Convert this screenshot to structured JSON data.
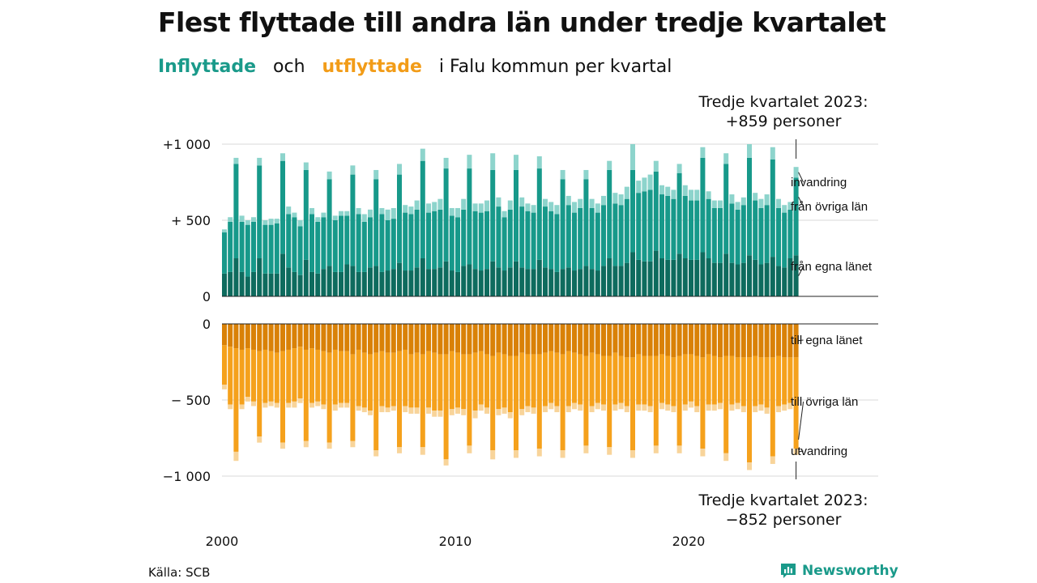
{
  "title": "Flest flyttade till andra län under tredje kvartalet",
  "subtitle": {
    "part1": "Inflyttade",
    "part2": "och",
    "part3": "utflyttade",
    "part4": "i Falu kommun per kvartal"
  },
  "annotations": {
    "top_line1": "Tredje kvartalet 2023:",
    "top_line2": "+859 personer",
    "bottom_line1": "Tredje kvartalet 2023:",
    "bottom_line2": "−852 personer"
  },
  "source": "Källa: SCB",
  "brand": {
    "name": "Newsworthy",
    "icon": "newsworthy-logo-icon"
  },
  "colors": {
    "in_own": "#0e6b5e",
    "in_other": "#17998a",
    "in_imm": "#8dd4cc",
    "out_own": "#d98107",
    "out_other": "#f5a11c",
    "out_emi": "#f8d49a",
    "in_accent": "#1a9a8a",
    "out_accent": "#f29c18",
    "grid": "#d9d9d9"
  },
  "chart_data": [
    {
      "type": "bar",
      "stacked": true,
      "panel": "inflyttade",
      "x_start": "2000Q1",
      "x_ticks": [
        "2000",
        "2010",
        "2020"
      ],
      "y_ticks": [
        "0",
        "+ 500",
        "+1 000"
      ],
      "y_tick_values": [
        0,
        500,
        1000
      ],
      "ylim": [
        0,
        1050
      ],
      "series": [
        {
          "name": "från egna länet",
          "values": [
            150,
            160,
            250,
            160,
            130,
            160,
            250,
            150,
            150,
            150,
            280,
            190,
            160,
            140,
            240,
            160,
            150,
            180,
            200,
            160,
            160,
            210,
            200,
            160,
            160,
            190,
            200,
            160,
            170,
            180,
            220,
            170,
            170,
            190,
            250,
            180,
            180,
            190,
            230,
            170,
            160,
            200,
            210,
            180,
            170,
            180,
            230,
            190,
            170,
            190,
            230,
            190,
            180,
            180,
            240,
            190,
            180,
            160,
            180,
            190,
            170,
            180,
            200,
            180,
            170,
            200,
            250,
            200,
            200,
            220,
            290,
            240,
            230,
            230,
            300,
            250,
            240,
            240,
            280,
            250,
            240,
            240,
            290,
            250,
            220,
            220,
            280,
            220,
            210,
            220,
            270,
            240,
            210,
            220,
            260,
            200,
            190,
            250,
            270
          ]
        },
        {
          "name": "från övriga län",
          "values": [
            270,
            330,
            620,
            330,
            340,
            330,
            610,
            320,
            320,
            330,
            610,
            350,
            360,
            320,
            590,
            380,
            340,
            340,
            570,
            340,
            370,
            320,
            600,
            380,
            330,
            330,
            570,
            380,
            330,
            330,
            580,
            380,
            370,
            380,
            640,
            370,
            380,
            380,
            610,
            360,
            360,
            370,
            630,
            380,
            380,
            380,
            600,
            400,
            350,
            380,
            600,
            400,
            380,
            370,
            600,
            400,
            380,
            380,
            590,
            410,
            380,
            400,
            570,
            400,
            380,
            400,
            580,
            410,
            400,
            420,
            540,
            440,
            460,
            470,
            520,
            420,
            420,
            400,
            530,
            410,
            390,
            390,
            620,
            390,
            360,
            360,
            590,
            390,
            360,
            380,
            640,
            390,
            370,
            380,
            640,
            380,
            360,
            320,
            510
          ]
        },
        {
          "name": "invandring",
          "values": [
            20,
            30,
            40,
            40,
            30,
            30,
            50,
            30,
            40,
            30,
            50,
            50,
            30,
            40,
            50,
            40,
            30,
            30,
            50,
            30,
            30,
            30,
            60,
            40,
            50,
            50,
            60,
            40,
            70,
            70,
            70,
            50,
            50,
            60,
            80,
            60,
            60,
            70,
            70,
            50,
            60,
            70,
            90,
            50,
            60,
            70,
            110,
            60,
            40,
            60,
            100,
            60,
            50,
            50,
            80,
            50,
            60,
            60,
            60,
            60,
            70,
            60,
            60,
            60,
            60,
            60,
            60,
            70,
            70,
            80,
            170,
            80,
            90,
            100,
            70,
            60,
            60,
            60,
            60,
            70,
            70,
            70,
            70,
            50,
            50,
            50,
            70,
            60,
            50,
            50,
            90,
            50,
            60,
            70,
            80,
            60,
            50,
            50,
            70
          ]
        }
      ]
    },
    {
      "type": "bar",
      "stacked": true,
      "panel": "utflyttade",
      "x_start": "2000Q1",
      "x_ticks": [
        "2000",
        "2010",
        "2020"
      ],
      "y_ticks": [
        "0",
        "− 500",
        "−1 000"
      ],
      "y_tick_values": [
        0,
        -500,
        -1000
      ],
      "ylim": [
        -1050,
        0
      ],
      "series": [
        {
          "name": "till egna länet",
          "values": [
            -140,
            -150,
            -160,
            -170,
            -160,
            -170,
            -180,
            -170,
            -180,
            -190,
            -180,
            -170,
            -160,
            -150,
            -170,
            -160,
            -170,
            -180,
            -190,
            -170,
            -180,
            -180,
            -200,
            -170,
            -190,
            -200,
            -190,
            -180,
            -190,
            -190,
            -180,
            -170,
            -200,
            -190,
            -200,
            -180,
            -190,
            -200,
            -200,
            -180,
            -190,
            -200,
            -200,
            -190,
            -180,
            -200,
            -210,
            -190,
            -200,
            -210,
            -210,
            -190,
            -200,
            -200,
            -200,
            -190,
            -180,
            -190,
            -200,
            -180,
            -190,
            -200,
            -210,
            -190,
            -200,
            -210,
            -210,
            -190,
            -210,
            -220,
            -220,
            -200,
            -210,
            -210,
            -210,
            -200,
            -210,
            -220,
            -210,
            -200,
            -200,
            -210,
            -220,
            -200,
            -210,
            -220,
            -210,
            -210,
            -220,
            -220,
            -220,
            -210,
            -220,
            -220,
            -220,
            -210,
            -220,
            -220,
            -220
          ]
        },
        {
          "name": "till övriga län",
          "values": [
            -260,
            -380,
            -680,
            -360,
            -320,
            -340,
            -560,
            -350,
            -330,
            -330,
            -600,
            -350,
            -350,
            -340,
            -600,
            -360,
            -340,
            -350,
            -590,
            -360,
            -340,
            -340,
            -570,
            -370,
            -360,
            -370,
            -640,
            -360,
            -360,
            -350,
            -630,
            -370,
            -350,
            -360,
            -610,
            -370,
            -380,
            -370,
            -690,
            -380,
            -360,
            -360,
            -600,
            -380,
            -350,
            -350,
            -620,
            -370,
            -350,
            -370,
            -620,
            -370,
            -340,
            -350,
            -620,
            -350,
            -340,
            -350,
            -630,
            -360,
            -330,
            -330,
            -590,
            -350,
            -320,
            -320,
            -600,
            -340,
            -310,
            -320,
            -610,
            -330,
            -320,
            -330,
            -590,
            -320,
            -320,
            -320,
            -590,
            -330,
            -310,
            -330,
            -600,
            -330,
            -320,
            -300,
            -640,
            -320,
            -300,
            -320,
            -690,
            -330,
            -310,
            -330,
            -650,
            -330,
            -310,
            -300,
            -600
          ]
        },
        {
          "name": "utvandring",
          "values": [
            -30,
            -30,
            -60,
            -30,
            -30,
            -30,
            -40,
            -30,
            -30,
            -30,
            -40,
            -30,
            -40,
            -30,
            -40,
            -30,
            -30,
            -30,
            -40,
            -40,
            -30,
            -30,
            -40,
            -30,
            -30,
            -30,
            -40,
            -40,
            -30,
            -30,
            -40,
            -40,
            -40,
            -40,
            -50,
            -40,
            -40,
            -40,
            -40,
            -40,
            -40,
            -40,
            -50,
            -50,
            -40,
            -40,
            -60,
            -40,
            -40,
            -40,
            -50,
            -40,
            -40,
            -40,
            -50,
            -40,
            -40,
            -40,
            -50,
            -40,
            -40,
            -40,
            -50,
            -40,
            -40,
            -40,
            -50,
            -40,
            -40,
            -40,
            -50,
            -40,
            -40,
            -40,
            -50,
            -40,
            -40,
            -40,
            -50,
            -40,
            -40,
            -40,
            -50,
            -40,
            -40,
            -40,
            -50,
            -40,
            -40,
            -40,
            -50,
            -40,
            -40,
            -40,
            -50,
            -40,
            -40,
            -40,
            -40
          ]
        }
      ]
    }
  ],
  "segment_labels": {
    "in_imm": "invandring",
    "in_other": "från övriga län",
    "in_own": "från egna länet",
    "out_own": "till egna länet",
    "out_other": "till övriga län",
    "out_emi": "utvandring"
  }
}
